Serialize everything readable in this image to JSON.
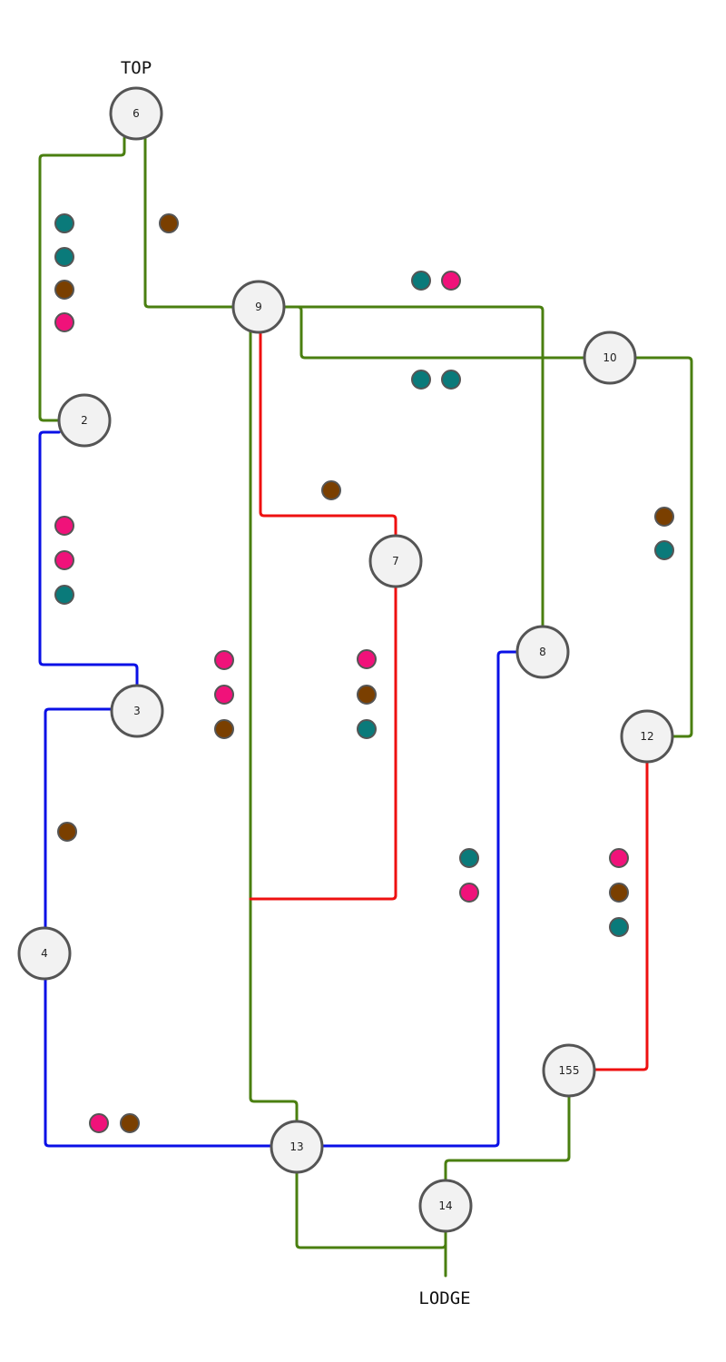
{
  "colors": {
    "green": "#4a7f10",
    "blue": "#0a10e6",
    "red": "#ee1010",
    "teal": "#0a7a7a",
    "brown": "#7a3f00",
    "magenta": "#f0127a",
    "node_fill": "#f2f2f2",
    "node_stroke": "#555555"
  },
  "labels": {
    "top": "TOP",
    "bottom": "LODGE"
  },
  "nodes": [
    {
      "id": "n6",
      "label": "6"
    },
    {
      "id": "n9",
      "label": "9"
    },
    {
      "id": "n10",
      "label": "10"
    },
    {
      "id": "n2",
      "label": "2"
    },
    {
      "id": "n7",
      "label": "7"
    },
    {
      "id": "n8",
      "label": "8"
    },
    {
      "id": "n3",
      "label": "3"
    },
    {
      "id": "n12",
      "label": "12"
    },
    {
      "id": "n4",
      "label": "4"
    },
    {
      "id": "n155",
      "label": "155"
    },
    {
      "id": "n13",
      "label": "13"
    },
    {
      "id": "n14",
      "label": "14"
    }
  ],
  "edges": [
    {
      "id": "e6-2",
      "from": "6",
      "to": "2",
      "color": "green"
    },
    {
      "id": "e6-9",
      "from": "6",
      "to": "9",
      "color": "green"
    },
    {
      "id": "e9-8",
      "from": "9",
      "to": "8",
      "color": "green"
    },
    {
      "id": "e9-10",
      "from": "9",
      "to": "10",
      "color": "green"
    },
    {
      "id": "e10-12",
      "from": "10",
      "to": "12",
      "color": "green"
    },
    {
      "id": "e9-13",
      "from": "9",
      "to": "13",
      "color": "green"
    },
    {
      "id": "e9-7",
      "from": "9",
      "to": "7",
      "color": "red"
    },
    {
      "id": "e7-junction",
      "from": "7",
      "to": "9-13 line",
      "color": "red"
    },
    {
      "id": "e2-3",
      "from": "2",
      "to": "3",
      "color": "blue"
    },
    {
      "id": "e3-4",
      "from": "3",
      "to": "4",
      "color": "blue"
    },
    {
      "id": "e4-13",
      "from": "4",
      "to": "13",
      "color": "blue"
    },
    {
      "id": "e13-8",
      "from": "13",
      "to": "8",
      "color": "blue"
    },
    {
      "id": "e12-155",
      "from": "12",
      "to": "155",
      "color": "red"
    },
    {
      "id": "e155-14",
      "from": "155",
      "to": "14",
      "color": "green"
    },
    {
      "id": "e13-14",
      "from": "13",
      "to": "14",
      "color": "green"
    },
    {
      "id": "e14-lodge",
      "from": "14",
      "to": "LODGE",
      "color": "green"
    }
  ],
  "marker_groups": [
    {
      "edge": "6-2",
      "colors": [
        "teal",
        "teal",
        "brown",
        "magenta"
      ]
    },
    {
      "edge": "6-9",
      "colors": [
        "brown"
      ]
    },
    {
      "edge": "9-8",
      "colors": [
        "teal",
        "magenta"
      ]
    },
    {
      "edge": "9-10",
      "colors": [
        "teal",
        "teal"
      ]
    },
    {
      "edge": "9-7",
      "colors": [
        "brown"
      ]
    },
    {
      "edge": "10-12",
      "colors": [
        "brown",
        "teal"
      ]
    },
    {
      "edge": "2-3",
      "colors": [
        "magenta",
        "magenta",
        "teal"
      ]
    },
    {
      "edge": "9-13",
      "colors": [
        "magenta",
        "magenta",
        "brown"
      ]
    },
    {
      "edge": "7-junction",
      "colors": [
        "magenta",
        "brown",
        "teal"
      ]
    },
    {
      "edge": "3-4",
      "colors": [
        "brown"
      ]
    },
    {
      "edge": "13-8",
      "colors": [
        "teal",
        "magenta"
      ]
    },
    {
      "edge": "12-155",
      "colors": [
        "magenta",
        "brown",
        "teal"
      ]
    },
    {
      "edge": "4-13",
      "colors": [
        "magenta",
        "brown"
      ]
    }
  ]
}
